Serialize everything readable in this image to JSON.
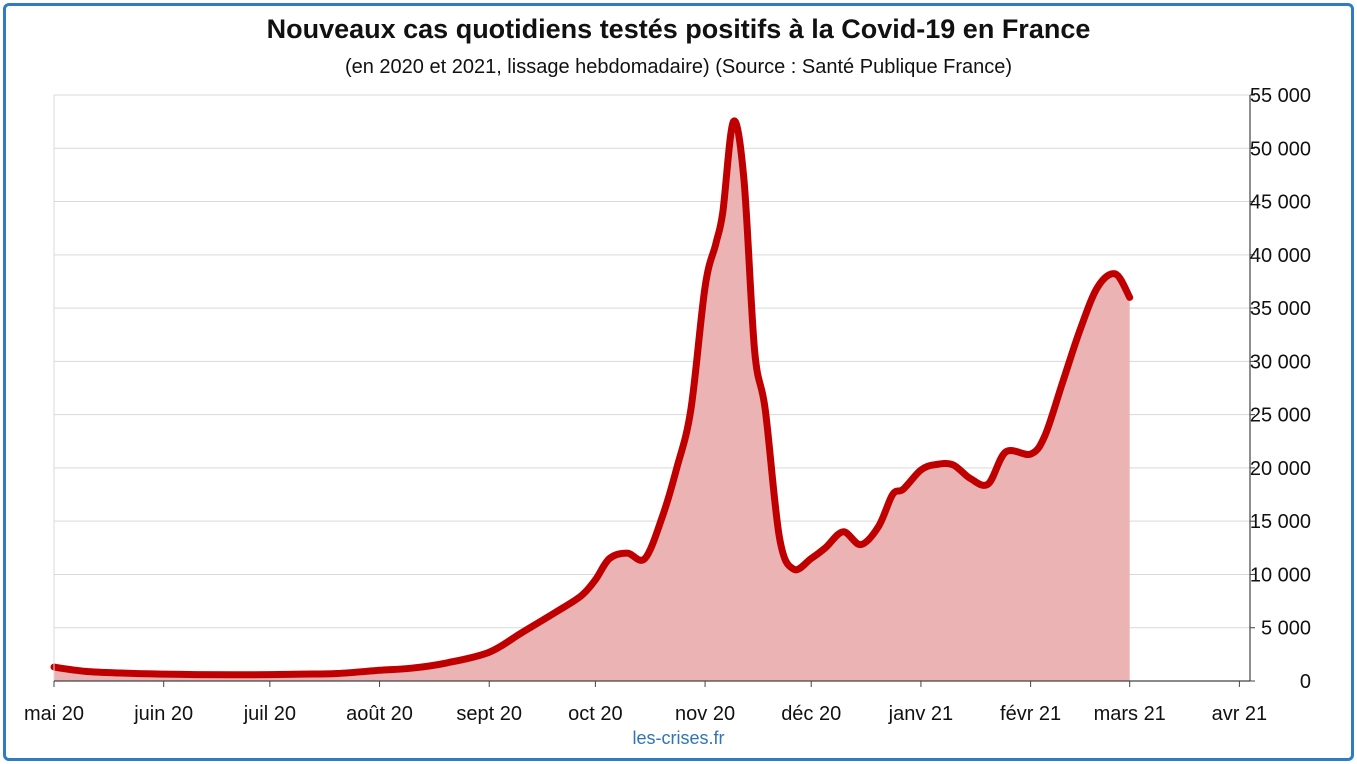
{
  "chart_data": {
    "type": "area",
    "title": "Nouveaux cas quotidiens testés positifs à la Covid-19 en France",
    "subtitle": "(en 2020 et 2021, lissage hebdomadaire) (Source : Santé Publique France)",
    "credit": "les-crises.fr",
    "y_axis_side": "right",
    "ylim": [
      0,
      55000
    ],
    "y_ticks": [
      0,
      5000,
      10000,
      15000,
      20000,
      25000,
      30000,
      35000,
      40000,
      45000,
      50000,
      55000
    ],
    "y_tick_labels": [
      "0",
      "5 000",
      "10 000",
      "15 000",
      "20 000",
      "25 000",
      "30 000",
      "35 000",
      "40 000",
      "45 000",
      "50 000",
      "55 000"
    ],
    "x_tick_labels": [
      "mai 20",
      "juin 20",
      "juil 20",
      "août 20",
      "sept 20",
      "oct 20",
      "nov 20",
      "déc 20",
      "janv 21",
      "févr 21",
      "mars 21",
      "avr 21"
    ],
    "grid": true,
    "line_color": "#c00000",
    "fill_color": "#ebb3b3",
    "series": [
      {
        "x": [
          "2020-05-01",
          "2020-05-10",
          "2020-05-20",
          "2020-06-01",
          "2020-06-10",
          "2020-06-20",
          "2020-07-01",
          "2020-07-10",
          "2020-07-20",
          "2020-08-01",
          "2020-08-10",
          "2020-08-20",
          "2020-09-01",
          "2020-09-10",
          "2020-09-20",
          "2020-09-27",
          "2020-10-01",
          "2020-10-05",
          "2020-10-10",
          "2020-10-15",
          "2020-10-20",
          "2020-10-24",
          "2020-10-28",
          "2020-11-01",
          "2020-11-04",
          "2020-11-06",
          "2020-11-09",
          "2020-11-12",
          "2020-11-15",
          "2020-11-18",
          "2020-11-22",
          "2020-11-26",
          "2020-12-01",
          "2020-12-05",
          "2020-12-10",
          "2020-12-15",
          "2020-12-20",
          "2020-12-24",
          "2020-12-27",
          "2021-01-01",
          "2021-01-05",
          "2021-01-10",
          "2021-01-15",
          "2021-01-20",
          "2021-01-25",
          "2021-02-01",
          "2021-02-05",
          "2021-02-10",
          "2021-02-15",
          "2021-02-20",
          "2021-02-25",
          "2021-03-01",
          "2021-03-05",
          "2021-03-10",
          "2021-03-15",
          "2021-03-20",
          "2021-03-25",
          "2021-03-30",
          "2021-04-01",
          "2021-04-03",
          "2021-04-04"
        ],
        "y": [
          1300,
          900,
          750,
          650,
          600,
          580,
          600,
          650,
          700,
          1000,
          1200,
          1700,
          2700,
          4500,
          6500,
          8000,
          9500,
          11500,
          12000,
          11500,
          15500,
          20000,
          25500,
          37000,
          41000,
          44000,
          52500,
          47000,
          31000,
          25500,
          13500,
          10500,
          11500,
          12500,
          14000,
          12800,
          14500,
          17500,
          18000,
          19800,
          20300,
          20300,
          19000,
          18500,
          21500,
          21300,
          23000,
          28000,
          33000,
          37000,
          38200,
          36000,
          null,
          null,
          null,
          null,
          null,
          null,
          null,
          null,
          null
        ]
      }
    ]
  }
}
